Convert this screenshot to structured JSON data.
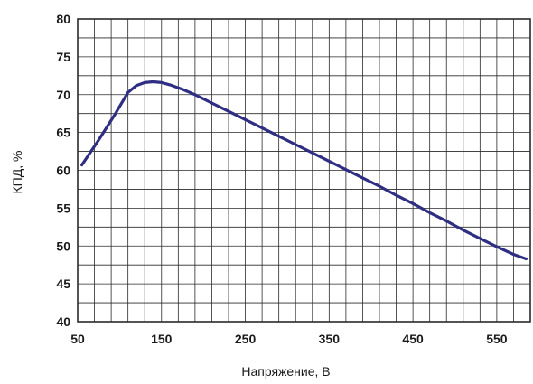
{
  "chart_data": {
    "type": "line",
    "title": "",
    "xlabel": "Напряжение, В",
    "ylabel": "КПД, %",
    "xlim": [
      50,
      590
    ],
    "ylim": [
      40,
      80
    ],
    "x_ticks": [
      50,
      150,
      250,
      350,
      450,
      550
    ],
    "y_ticks": [
      40,
      45,
      50,
      55,
      60,
      65,
      70,
      75,
      80
    ],
    "x_minor_step": 20,
    "y_minor_step": 2.5,
    "grid": true,
    "colors": {
      "line": "#2e2f82",
      "grid": "#2a2a2a",
      "text": "#1a1a1a"
    },
    "series": [
      {
        "x": [
          55,
          75,
          95,
          110,
          120,
          130,
          140,
          150,
          160,
          175,
          190,
          210,
          230,
          250,
          270,
          290,
          310,
          330,
          350,
          370,
          390,
          410,
          430,
          450,
          470,
          490,
          510,
          530,
          550,
          570,
          585
        ],
        "values": [
          60.7,
          64.0,
          67.5,
          70.3,
          71.2,
          71.6,
          71.7,
          71.6,
          71.3,
          70.7,
          70.0,
          68.9,
          67.8,
          66.7,
          65.6,
          64.5,
          63.4,
          62.3,
          61.2,
          60.1,
          59.0,
          57.9,
          56.7,
          55.6,
          54.4,
          53.3,
          52.1,
          51.0,
          49.9,
          48.9,
          48.3
        ]
      }
    ]
  }
}
